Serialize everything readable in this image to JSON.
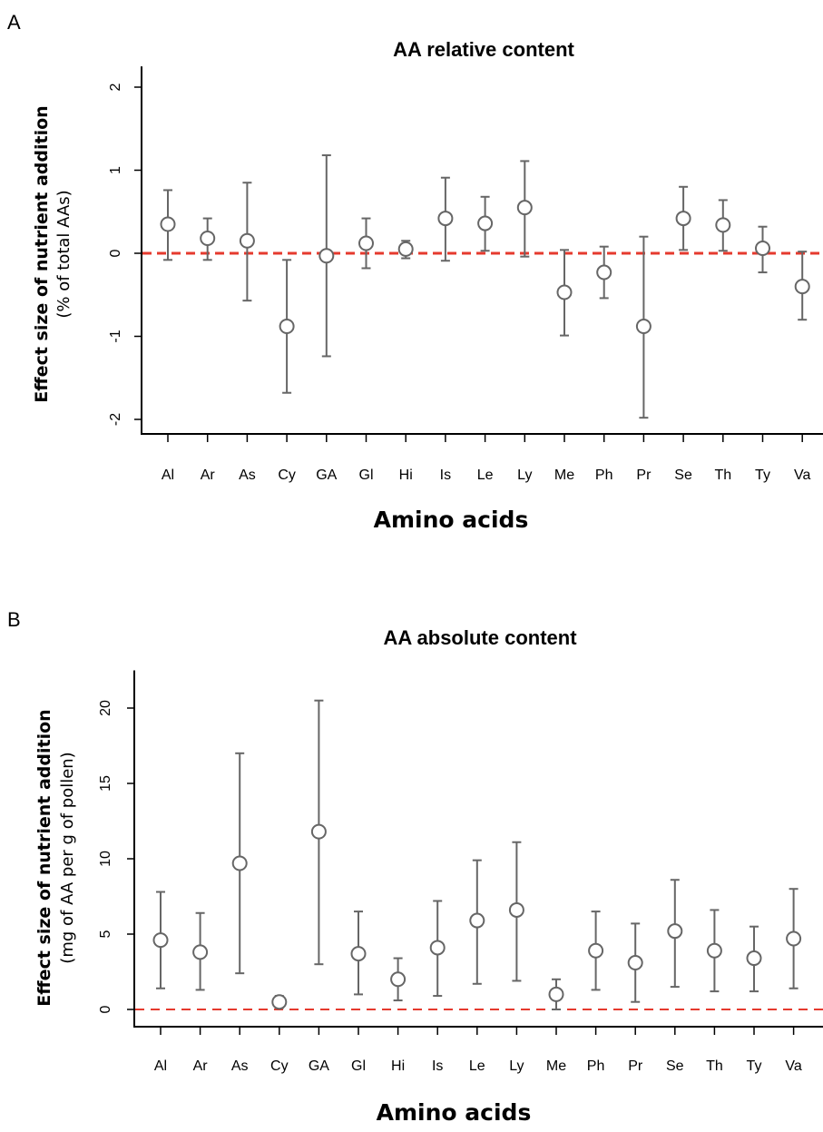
{
  "chart_data": [
    {
      "panel_label": "A",
      "type": "scatter",
      "title": "AA relative content",
      "xlabel": "Amino acids",
      "ylabel": "Effect size of nutrient addition",
      "ylabel_sub": "(% of total AAs)",
      "categories": [
        "Al",
        "Ar",
        "As",
        "Cy",
        "GA",
        "Gl",
        "Hi",
        "Is",
        "Le",
        "Ly",
        "Me",
        "Ph",
        "Pr",
        "Se",
        "Th",
        "Ty",
        "Va"
      ],
      "values": [
        0.35,
        0.18,
        0.15,
        -0.88,
        -0.03,
        0.12,
        0.05,
        0.42,
        0.36,
        0.55,
        -0.47,
        -0.23,
        -0.88,
        0.42,
        0.34,
        0.06,
        -0.4
      ],
      "lower": [
        -0.08,
        -0.08,
        -0.57,
        -1.68,
        -1.24,
        -0.18,
        -0.06,
        -0.09,
        0.03,
        -0.04,
        -0.99,
        -0.54,
        -1.98,
        0.04,
        0.03,
        -0.23,
        -0.8
      ],
      "upper": [
        0.76,
        0.42,
        0.85,
        -0.08,
        1.18,
        0.42,
        0.15,
        0.91,
        0.68,
        1.11,
        0.04,
        0.08,
        0.2,
        0.8,
        0.64,
        0.32,
        0.02
      ],
      "yticks": [
        -2,
        -1,
        0,
        1,
        2
      ],
      "ylim": [
        -2.15,
        2.25
      ],
      "reference_line": 0,
      "reference_color": "#e53a2e",
      "marker_color": "#666666"
    },
    {
      "panel_label": "B",
      "type": "scatter",
      "title": "AA absolute content",
      "xlabel": "Amino acids",
      "ylabel": "Effect size of nutrient addition",
      "ylabel_sub": "(mg of AA per g of pollen)",
      "categories": [
        "Al",
        "Ar",
        "As",
        "Cy",
        "GA",
        "Gl",
        "Hi",
        "Is",
        "Le",
        "Ly",
        "Me",
        "Ph",
        "Pr",
        "Se",
        "Th",
        "Ty",
        "Va"
      ],
      "values": [
        4.6,
        3.8,
        9.7,
        0.5,
        11.8,
        3.7,
        2.0,
        4.1,
        5.9,
        6.6,
        1.0,
        3.9,
        3.1,
        5.2,
        3.9,
        3.4,
        4.7
      ],
      "lower": [
        1.4,
        1.3,
        2.4,
        0.1,
        3.0,
        1.0,
        0.6,
        0.9,
        1.7,
        1.9,
        0.0,
        1.3,
        0.5,
        1.5,
        1.2,
        1.2,
        1.4
      ],
      "upper": [
        7.8,
        6.4,
        17.0,
        0.9,
        20.5,
        6.5,
        3.4,
        7.2,
        9.9,
        11.1,
        2.0,
        6.5,
        5.7,
        8.6,
        6.6,
        5.5,
        8.0
      ],
      "yticks": [
        0,
        5,
        10,
        15,
        20
      ],
      "ylim": [
        -1.0,
        22.5
      ],
      "reference_line": 0,
      "reference_color": "#e53a2e",
      "marker_color": "#666666"
    }
  ]
}
